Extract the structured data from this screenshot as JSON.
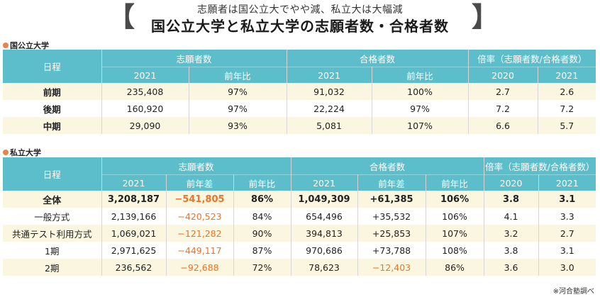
{
  "header": {
    "subtitle": "志願者は国公立大でやや減、私立大は大幅減",
    "title": "国公立大学と私立大学の志願者数・合格者数"
  },
  "public": {
    "section_label": "国公立大学",
    "col_schedule": "日程",
    "col_applicants": "志願者数",
    "col_passers": "合格者数",
    "col_ratio": "倍率（志願者数/合格者数）",
    "sub": [
      "2021",
      "前年比",
      "2021",
      "前年比",
      "2020",
      "2021"
    ],
    "rows": [
      {
        "name": "前期",
        "cells": [
          "235,408",
          "97%",
          "91,032",
          "100%",
          "2.7",
          "2.6"
        ]
      },
      {
        "name": "後期",
        "cells": [
          "160,920",
          "97%",
          "22,224",
          "97%",
          "7.2",
          "7.2"
        ]
      },
      {
        "name": "中期",
        "cells": [
          "29,090",
          "93%",
          "5,081",
          "107%",
          "6.6",
          "5.7"
        ]
      }
    ]
  },
  "private": {
    "section_label": "私立大学",
    "col_schedule": "日程",
    "col_applicants": "志願者数",
    "col_passers": "合格者数",
    "col_ratio": "倍率（志願者数/合格者数）",
    "sub": [
      "2021",
      "前年差",
      "前年比",
      "2021",
      "前年差",
      "前年比",
      "2020",
      "2021"
    ],
    "rows": [
      {
        "name": "全体",
        "cells": [
          "3,208,187",
          "−541,805",
          "86%",
          "1,049,309",
          "+61,385",
          "106%",
          "3.8",
          "3.1"
        ]
      },
      {
        "name": "一般方式",
        "cells": [
          "2,139,166",
          "−420,523",
          "84%",
          "654,496",
          "+35,532",
          "106%",
          "4.1",
          "3.3"
        ]
      },
      {
        "name": "共通テスト利用方式",
        "cells": [
          "1,069,021",
          "−121,282",
          "90%",
          "394,813",
          "+25,853",
          "107%",
          "3.2",
          "2.7"
        ]
      },
      {
        "name": "1期",
        "cells": [
          "2,971,625",
          "−449,117",
          "87%",
          "970,686",
          "+73,788",
          "108%",
          "3.8",
          "3.1"
        ]
      },
      {
        "name": "2期",
        "cells": [
          "236,562",
          "−92,688",
          "72%",
          "78,623",
          "−12,403",
          "86%",
          "3.6",
          "3.0"
        ]
      }
    ]
  },
  "colors": {
    "header_teal": "#5dbecb",
    "row_yellow": "#fbf6df",
    "negative_orange": "#e8752a",
    "dot_orange": "#e8844a"
  },
  "footnote": "※河合塾調べ"
}
